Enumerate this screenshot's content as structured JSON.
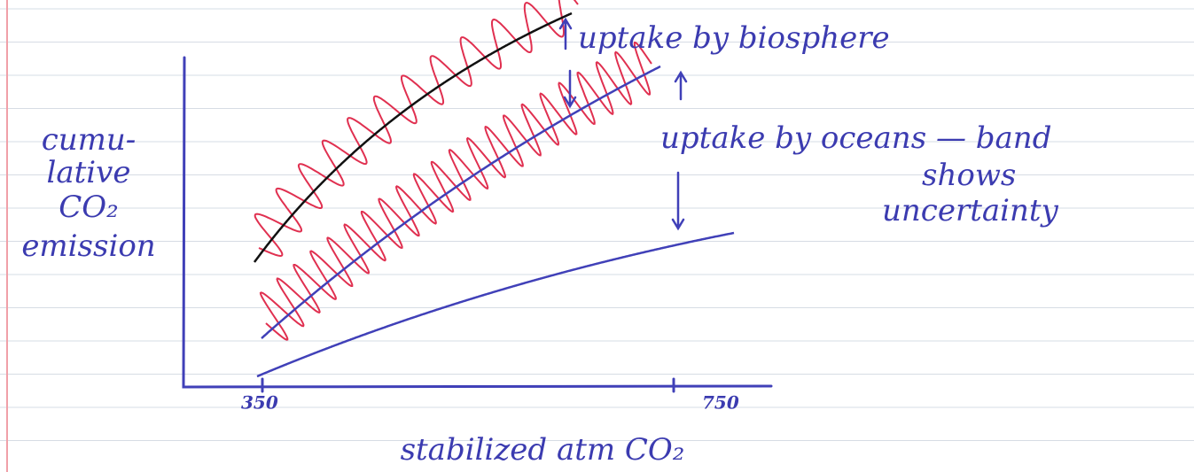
{
  "annotations": {
    "biosphere": "uptake by biosphere",
    "oceans": [
      "uptake by oceans — band",
      "shows",
      "uncertainty"
    ]
  },
  "y_axis_label": [
    "cumu-",
    "lative",
    "CO₂",
    "emission"
  ],
  "x_axis": {
    "ticks": [
      "350",
      "750"
    ],
    "label": "stabilized atm CO₂"
  }
}
